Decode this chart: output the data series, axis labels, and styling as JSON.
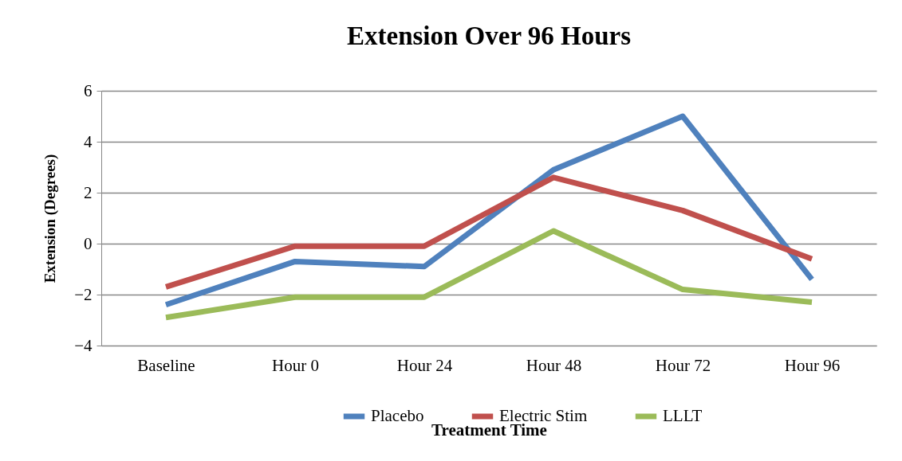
{
  "chart_data": {
    "type": "line",
    "title": "Extension Over 96 Hours",
    "xlabel": "Treatment Time",
    "ylabel": "Extension (Degrees)",
    "categories": [
      "Baseline",
      "Hour 0",
      "Hour 24",
      "Hour 48",
      "Hour 72",
      "Hour 96"
    ],
    "series": [
      {
        "name": "Placebo",
        "color": "#4f81bd",
        "values": [
          -2.4,
          -0.7,
          -0.9,
          2.9,
          5.0,
          -1.4
        ]
      },
      {
        "name": "Electric Stim",
        "color": "#c0504d",
        "values": [
          -1.7,
          -0.1,
          -0.1,
          2.6,
          1.3,
          -0.6
        ]
      },
      {
        "name": "LLLT",
        "color": "#9bbb59",
        "values": [
          -2.9,
          -2.1,
          -2.1,
          0.5,
          -1.8,
          -2.3
        ]
      }
    ],
    "ylim": [
      -4,
      6
    ],
    "yticks": [
      -4,
      -2,
      0,
      2,
      4,
      6
    ],
    "grid": "y",
    "legend": "bottom",
    "marker": "none",
    "line_style": "solid"
  }
}
